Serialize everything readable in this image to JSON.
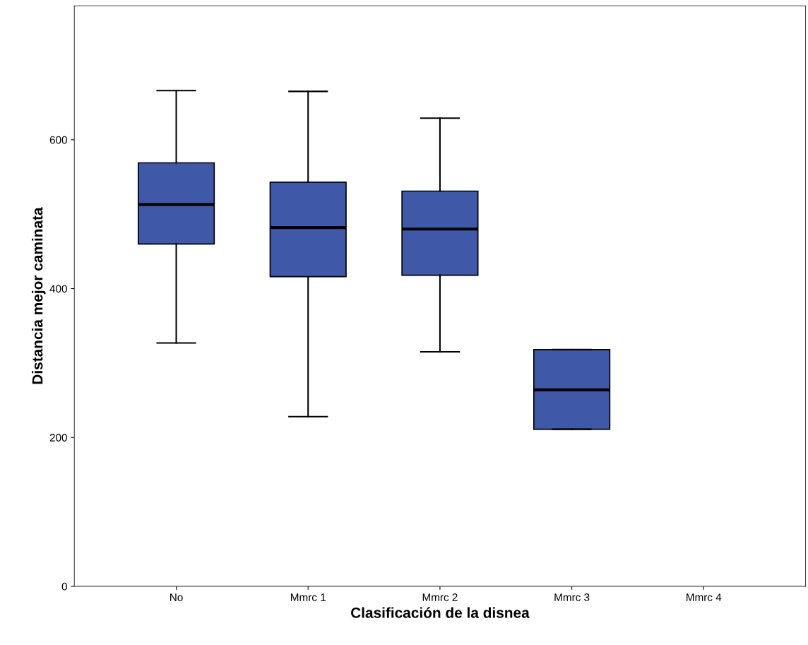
{
  "chart_data": {
    "type": "box",
    "xlabel": "Clasificación de la disnea",
    "ylabel": "Distancia mejor caminata",
    "categories": [
      "No",
      "Mmrc 1",
      "Mmrc 2",
      "Mmrc 3",
      "Mmrc 4"
    ],
    "boxes": [
      {
        "low": 327,
        "q1": 460,
        "median": 513,
        "q3": 569,
        "high": 666
      },
      {
        "low": 228,
        "q1": 416,
        "median": 482,
        "q3": 543,
        "high": 665
      },
      {
        "low": 315,
        "q1": 418,
        "median": 480,
        "q3": 531,
        "high": 629
      },
      {
        "low": 211,
        "q1": 211,
        "median": 264,
        "q3": 318,
        "high": 318
      },
      null
    ],
    "color": "#3f58a8",
    "ylim": [
      0,
      780
    ],
    "yticks": [
      0,
      200,
      400,
      600
    ],
    "grid": false
  }
}
